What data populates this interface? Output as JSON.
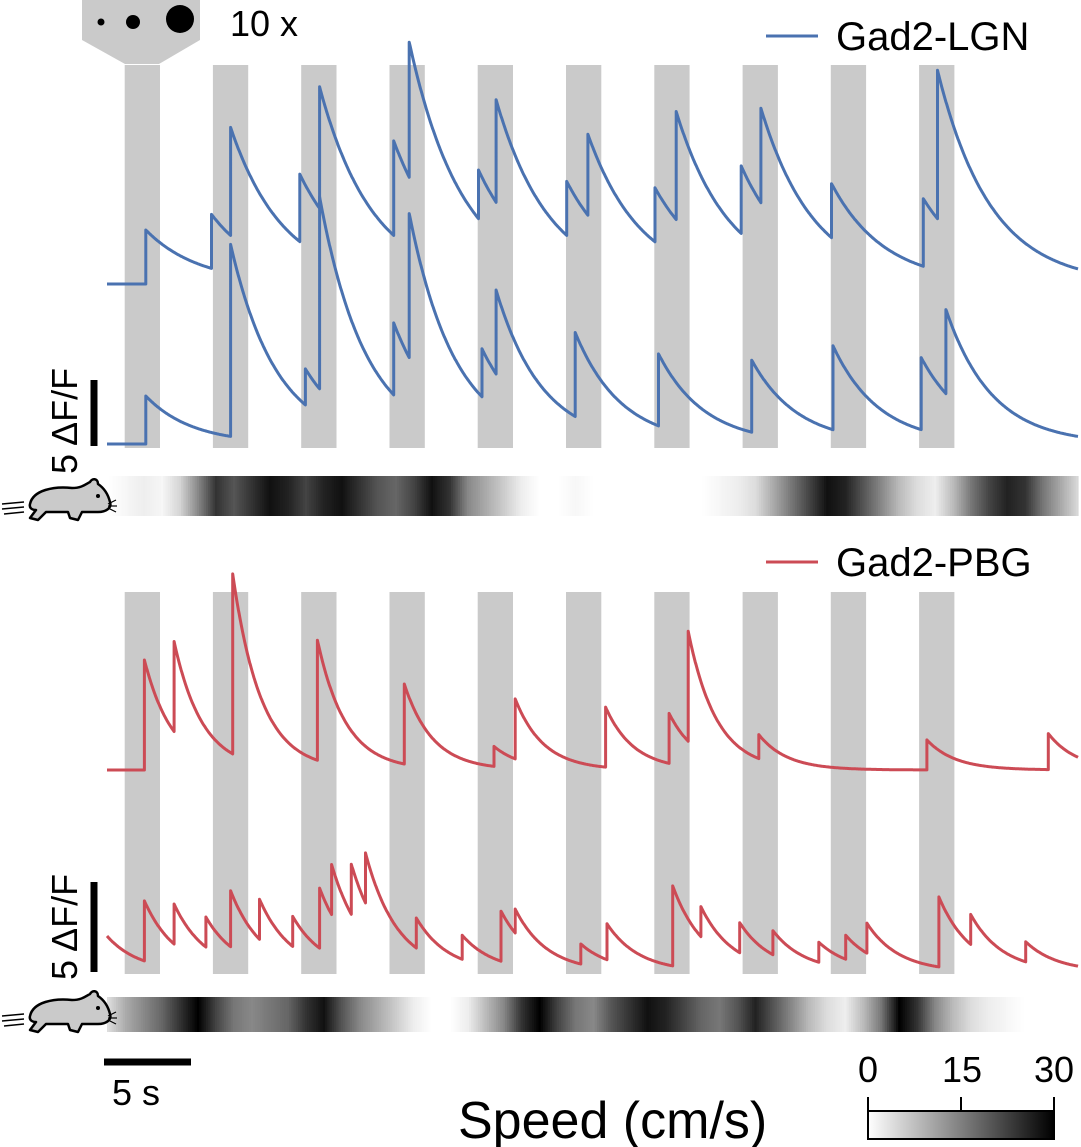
{
  "stimulus_label": "10 x",
  "scale_bar_dff": "5 ΔF/F",
  "scale_bar_time": "5 s",
  "speed_bar": {
    "label": "Speed (cm/s)",
    "ticks": [
      "0",
      "15",
      "30"
    ],
    "range": [
      0,
      30
    ]
  },
  "colors": {
    "lgn": "#4a72b0",
    "pbg": "#cc4b55",
    "stim_band": "#cacaca"
  },
  "chart_data": [
    {
      "type": "line",
      "panel": "Gad2-LGN",
      "legend": "Gad2-LGN",
      "legend_placement": "top-right",
      "grid": false,
      "x_unit": "s",
      "x_range": [
        0,
        55
      ],
      "y_unit": "ΔF/F",
      "stimulus_onsets": [
        1,
        6,
        11,
        16,
        21,
        26,
        31,
        36,
        41,
        46
      ],
      "stimulus_duration": 2,
      "series": [
        {
          "name": "Gad2-LGN",
          "baseline": 0,
          "tau": 3.0,
          "events": [
            {
              "t": 2.2,
              "a": 2.0
            },
            {
              "t": 5.9,
              "a": 2.0
            },
            {
              "t": 7.0,
              "a": 4.0
            },
            {
              "t": 10.9,
              "a": 2.5
            },
            {
              "t": 12.0,
              "a": 4.5
            },
            {
              "t": 16.2,
              "a": 3.5
            },
            {
              "t": 17.1,
              "a": 5.0
            },
            {
              "t": 21.0,
              "a": 1.8
            },
            {
              "t": 22.0,
              "a": 3.8
            },
            {
              "t": 26.0,
              "a": 2.0
            },
            {
              "t": 27.2,
              "a": 3.0
            },
            {
              "t": 31.0,
              "a": 2.0
            },
            {
              "t": 32.2,
              "a": 4.0
            },
            {
              "t": 35.9,
              "a": 2.5
            },
            {
              "t": 37.0,
              "a": 3.5
            },
            {
              "t": 41.0,
              "a": 2.0
            },
            {
              "t": 46.2,
              "a": 2.5
            },
            {
              "t": 47.0,
              "a": 5.5
            }
          ]
        },
        {
          "name": "Gad2-LGN",
          "baseline": 0,
          "tau": 2.6,
          "events": [
            {
              "t": 2.2,
              "a": 2.0
            },
            {
              "t": 7.0,
              "a": 8.0
            },
            {
              "t": 11.2,
              "a": 1.5
            },
            {
              "t": 12.0,
              "a": 8.0
            },
            {
              "t": 16.2,
              "a": 3.0
            },
            {
              "t": 17.1,
              "a": 6.0
            },
            {
              "t": 21.2,
              "a": 2.0
            },
            {
              "t": 22.0,
              "a": 3.5
            },
            {
              "t": 26.5,
              "a": 3.5
            },
            {
              "t": 31.2,
              "a": 3.0
            },
            {
              "t": 36.5,
              "a": 3.0
            },
            {
              "t": 41.1,
              "a": 3.5
            },
            {
              "t": 46.1,
              "a": 3.0
            },
            {
              "t": 47.5,
              "a": 3.5
            }
          ]
        }
      ],
      "speed_trace": [
        0,
        1,
        2,
        1,
        5,
        14,
        24,
        20,
        24,
        28,
        26,
        22,
        26,
        28,
        24,
        20,
        18,
        22,
        28,
        24,
        14,
        10,
        6,
        2,
        0,
        0,
        1,
        0,
        0,
        0,
        0,
        0,
        0,
        0,
        1,
        2,
        4,
        10,
        16,
        22,
        28,
        26,
        20,
        14,
        8,
        4,
        2,
        8,
        16,
        22,
        26,
        24,
        16,
        10,
        4
      ]
    },
    {
      "type": "line",
      "panel": "Gad2-PBG",
      "legend": "Gad2-PBG",
      "legend_placement": "top-right",
      "grid": false,
      "x_unit": "s",
      "x_range": [
        0,
        55
      ],
      "y_unit": "ΔF/F",
      "stimulus_onsets": [
        1,
        6,
        11,
        16,
        21,
        26,
        31,
        36,
        41,
        46
      ],
      "stimulus_duration": 2,
      "series": [
        {
          "name": "Gad2-PBG",
          "baseline": 0,
          "tau": 1.6,
          "events": [
            {
              "t": 2.1,
              "a": 5.5
            },
            {
              "t": 3.8,
              "a": 4.5
            },
            {
              "t": 7.1,
              "a": 9.0
            },
            {
              "t": 11.9,
              "a": 6.0
            },
            {
              "t": 16.8,
              "a": 4.0
            },
            {
              "t": 21.9,
              "a": 1.0
            },
            {
              "t": 23.1,
              "a": 3.0
            },
            {
              "t": 28.2,
              "a": 3.0
            },
            {
              "t": 31.8,
              "a": 2.5
            },
            {
              "t": 32.9,
              "a": 5.5
            },
            {
              "t": 36.9,
              "a": 1.2
            },
            {
              "t": 46.4,
              "a": 1.5
            },
            {
              "t": 53.3,
              "a": 1.8
            }
          ]
        },
        {
          "name": "Gad2-PBG",
          "baseline": 0,
          "tau": 1.8,
          "events": [
            {
              "t": 0.0,
              "a": 1.8
            },
            {
              "t": 2.1,
              "a": 3.0
            },
            {
              "t": 3.8,
              "a": 2.0
            },
            {
              "t": 5.6,
              "a": 1.5
            },
            {
              "t": 7.0,
              "a": 2.8
            },
            {
              "t": 8.6,
              "a": 2.0
            },
            {
              "t": 10.5,
              "a": 1.5
            },
            {
              "t": 12.0,
              "a": 3.0
            },
            {
              "t": 12.7,
              "a": 2.5
            },
            {
              "t": 13.8,
              "a": 2.5
            },
            {
              "t": 14.6,
              "a": 2.5
            },
            {
              "t": 17.5,
              "a": 1.5
            },
            {
              "t": 20.1,
              "a": 1.2
            },
            {
              "t": 22.3,
              "a": 2.5
            },
            {
              "t": 23.1,
              "a": 1.2
            },
            {
              "t": 26.8,
              "a": 1.0
            },
            {
              "t": 28.3,
              "a": 1.8
            },
            {
              "t": 32.0,
              "a": 4.0
            },
            {
              "t": 33.6,
              "a": 1.5
            },
            {
              "t": 35.8,
              "a": 1.5
            },
            {
              "t": 37.7,
              "a": 1.2
            },
            {
              "t": 40.3,
              "a": 1.0
            },
            {
              "t": 41.8,
              "a": 1.2
            },
            {
              "t": 43.0,
              "a": 1.5
            },
            {
              "t": 47.1,
              "a": 3.5
            },
            {
              "t": 48.9,
              "a": 1.5
            },
            {
              "t": 52.0,
              "a": 1.0
            }
          ]
        }
      ],
      "speed_trace": [
        4,
        10,
        14,
        18,
        24,
        30,
        22,
        16,
        14,
        16,
        18,
        24,
        28,
        20,
        14,
        10,
        6,
        2,
        0,
        0,
        2,
        8,
        14,
        24,
        30,
        22,
        16,
        14,
        20,
        24,
        28,
        26,
        22,
        18,
        16,
        20,
        26,
        20,
        14,
        8,
        4,
        2,
        8,
        16,
        30,
        24,
        14,
        8,
        4,
        2,
        1,
        0,
        0,
        0,
        0
      ]
    }
  ]
}
